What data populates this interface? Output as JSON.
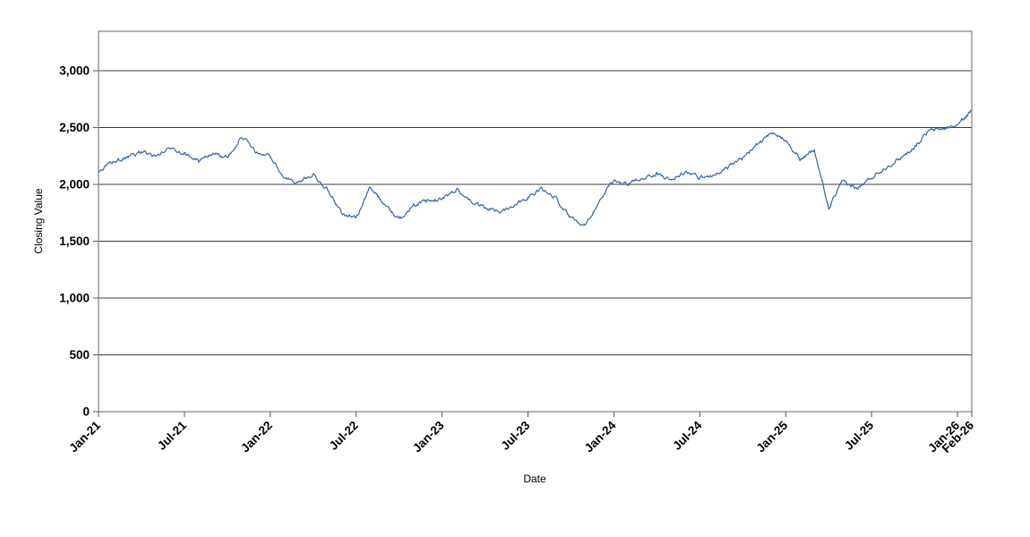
{
  "page": {
    "background": "#ffffff"
  },
  "chart_data": {
    "type": "line",
    "title": "",
    "xlabel": "Date",
    "ylabel": "Closing Value",
    "legend": "none",
    "grid": "horizontal",
    "line_color": "#3465a4",
    "grid_color": "#3c3c3c",
    "frame_color": "#808080",
    "tick_color": "#555555",
    "ylim": [
      0,
      3347
    ],
    "y_ticks": [
      0,
      500,
      1000,
      1500,
      2000,
      2500,
      3000
    ],
    "y_tick_labels": [
      "0",
      "500",
      "1,000",
      "1,500",
      "2,000",
      "2,500",
      "3,000"
    ],
    "x_tick_labels": [
      "Jan-21",
      "Jul-21",
      "Jan-22",
      "Jul-22",
      "Jan-23",
      "Jul-23",
      "Jan-24",
      "Jul-24",
      "Jan-25",
      "Jul-25",
      "Jan-26",
      "Feb-26"
    ],
    "x_tick_month_index": [
      0,
      6,
      12,
      18,
      24,
      30,
      36,
      42,
      48,
      54,
      60,
      61
    ],
    "x": [
      "Jan-21",
      "Feb-21",
      "Mar-21",
      "Apr-21",
      "May-21",
      "Jun-21",
      "Jul-21",
      "Aug-21",
      "Sep-21",
      "Oct-21",
      "Nov-21",
      "Dec-21",
      "Jan-22",
      "Feb-22",
      "Mar-22",
      "Apr-22",
      "May-22",
      "Jun-22",
      "Jul-22",
      "Aug-22",
      "Sep-22",
      "Oct-22",
      "Nov-22",
      "Dec-22",
      "Jan-23",
      "Feb-23",
      "Mar-23",
      "Apr-23",
      "May-23",
      "Jun-23",
      "Jul-23",
      "Aug-23",
      "Sep-23",
      "Oct-23",
      "Nov-23",
      "Dec-23",
      "Jan-24",
      "Feb-24",
      "Mar-24",
      "Apr-24",
      "May-24",
      "Jun-24",
      "Jul-24",
      "Aug-24",
      "Sep-24",
      "Oct-24",
      "Nov-24",
      "Dec-24",
      "Jan-25",
      "Feb-25",
      "Mar-25",
      "Apr-25",
      "May-25",
      "Jun-25",
      "Jul-25",
      "Aug-25",
      "Sep-25",
      "Oct-25",
      "Nov-25",
      "Dec-25",
      "Jan-26",
      "Feb-26"
    ],
    "values": [
      2100,
      2200,
      2230,
      2290,
      2250,
      2320,
      2280,
      2200,
      2280,
      2230,
      2430,
      2280,
      2250,
      2050,
      2020,
      2090,
      1950,
      1750,
      1700,
      1980,
      1820,
      1690,
      1820,
      1850,
      1870,
      1960,
      1850,
      1790,
      1760,
      1820,
      1890,
      1960,
      1870,
      1700,
      1650,
      1850,
      2040,
      2000,
      2060,
      2090,
      2040,
      2110,
      2060,
      2080,
      2150,
      2230,
      2350,
      2440,
      2400,
      2220,
      2300,
      1790,
      2030,
      1960,
      2060,
      2150,
      2230,
      2330,
      2470,
      2490,
      2520,
      2650
    ],
    "noise_amplitude": 32,
    "points_per_month": 16,
    "noise_seed": 987654321
  }
}
